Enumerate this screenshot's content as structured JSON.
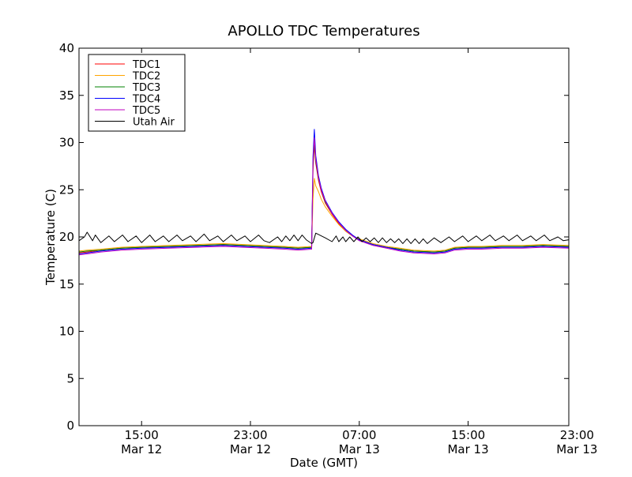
{
  "chart_data": {
    "type": "line",
    "title": "APOLLO TDC Temperatures",
    "xlabel": "Date (GMT)",
    "ylabel": "Temperature (C)",
    "x_unit": "hours since Mar 12 00:00 GMT",
    "xlim": [
      10.4,
      46.4
    ],
    "ylim": [
      0,
      40
    ],
    "y_ticks": [
      0,
      5,
      10,
      15,
      20,
      25,
      30,
      35,
      40
    ],
    "x_ticks": [
      {
        "x": 15,
        "time": "15:00",
        "date": "Mar 12"
      },
      {
        "x": 23,
        "time": "23:00",
        "date": "Mar 12"
      },
      {
        "x": 31,
        "time": "07:00",
        "date": "Mar 13"
      },
      {
        "x": 39,
        "time": "15:00",
        "date": "Mar 13"
      },
      {
        "x": 47,
        "time": "23:00",
        "date": "Mar 13"
      }
    ],
    "legend_position": "top-left",
    "series": [
      {
        "name": "TDC1",
        "color": "#ff0000",
        "x": [
          10.4,
          11.0,
          12.0,
          13.5,
          15.0,
          17.0,
          19.0,
          21.0,
          22.5,
          24.0,
          25.5,
          26.5,
          27.5,
          27.6,
          27.7,
          27.8,
          28.0,
          28.2,
          28.5,
          29.0,
          29.5,
          30.0,
          30.5,
          31.0,
          32.0,
          33.0,
          34.0,
          35.0,
          36.5,
          37.3,
          38.0,
          39.0,
          40.0,
          41.5,
          43.0,
          44.5,
          46.4
        ],
        "values": [
          18.3,
          18.4,
          18.6,
          18.8,
          18.9,
          19.0,
          19.1,
          19.2,
          19.1,
          19.0,
          18.9,
          18.8,
          18.9,
          27.0,
          29.8,
          27.8,
          26.0,
          24.8,
          23.6,
          22.4,
          21.4,
          20.6,
          20.1,
          19.7,
          19.2,
          18.9,
          18.7,
          18.5,
          18.4,
          18.5,
          18.8,
          18.9,
          18.9,
          19.0,
          19.0,
          19.1,
          19.0
        ]
      },
      {
        "name": "TDC2",
        "color": "#ffa500",
        "x": [
          10.4,
          11.0,
          12.0,
          13.5,
          15.0,
          17.0,
          19.0,
          21.0,
          22.5,
          24.0,
          25.5,
          26.5,
          27.5,
          27.6,
          27.7,
          27.8,
          28.0,
          28.2,
          28.5,
          29.0,
          29.5,
          30.0,
          30.5,
          31.0,
          32.0,
          33.0,
          34.0,
          35.0,
          36.5,
          37.3,
          38.0,
          39.0,
          40.0,
          41.5,
          43.0,
          44.5,
          46.4
        ],
        "values": [
          18.5,
          18.6,
          18.7,
          18.9,
          19.0,
          19.1,
          19.2,
          19.3,
          19.2,
          19.1,
          19.0,
          18.9,
          19.0,
          24.0,
          26.2,
          25.4,
          24.8,
          24.0,
          23.2,
          22.2,
          21.3,
          20.6,
          20.1,
          19.8,
          19.3,
          19.0,
          18.8,
          18.6,
          18.5,
          18.6,
          18.9,
          19.0,
          19.0,
          19.1,
          19.1,
          19.2,
          19.1
        ]
      },
      {
        "name": "TDC3",
        "color": "#008000",
        "x": [
          10.4,
          11.0,
          12.0,
          13.5,
          15.0,
          17.0,
          19.0,
          21.0,
          22.5,
          24.0,
          25.5,
          26.5,
          27.5,
          27.6,
          27.7,
          27.8,
          28.0,
          28.2,
          28.5,
          29.0,
          29.5,
          30.0,
          30.5,
          31.0,
          32.0,
          33.0,
          34.0,
          35.0,
          36.5,
          37.3,
          38.0,
          39.0,
          40.0,
          41.5,
          43.0,
          44.5,
          46.4
        ],
        "values": [
          18.4,
          18.5,
          18.6,
          18.8,
          18.9,
          19.0,
          19.1,
          19.2,
          19.1,
          19.0,
          18.9,
          18.8,
          18.9,
          27.5,
          30.2,
          28.0,
          26.2,
          25.0,
          23.7,
          22.5,
          21.5,
          20.7,
          20.1,
          19.7,
          19.2,
          18.9,
          18.7,
          18.5,
          18.4,
          18.5,
          18.8,
          18.9,
          18.9,
          19.0,
          19.0,
          19.1,
          19.0
        ]
      },
      {
        "name": "TDC4",
        "color": "#0000ff",
        "x": [
          10.4,
          11.0,
          12.0,
          13.5,
          15.0,
          17.0,
          19.0,
          21.0,
          22.5,
          24.0,
          25.5,
          26.5,
          27.5,
          27.6,
          27.7,
          27.8,
          28.0,
          28.2,
          28.5,
          29.0,
          29.5,
          30.0,
          30.5,
          31.0,
          32.0,
          33.0,
          34.0,
          35.0,
          36.5,
          37.3,
          38.0,
          39.0,
          40.0,
          41.5,
          43.0,
          44.5,
          46.4
        ],
        "values": [
          18.2,
          18.3,
          18.5,
          18.7,
          18.8,
          18.9,
          19.0,
          19.1,
          19.0,
          18.9,
          18.8,
          18.7,
          18.8,
          28.5,
          31.4,
          28.6,
          26.5,
          25.2,
          23.9,
          22.6,
          21.6,
          20.8,
          20.2,
          19.7,
          19.2,
          18.9,
          18.6,
          18.4,
          18.3,
          18.4,
          18.7,
          18.8,
          18.8,
          18.9,
          18.9,
          19.0,
          18.9
        ]
      },
      {
        "name": "TDC5",
        "color": "#bf00bf",
        "x": [
          10.4,
          11.0,
          12.0,
          13.5,
          15.0,
          17.0,
          19.0,
          21.0,
          22.5,
          24.0,
          25.5,
          26.5,
          27.5,
          27.6,
          27.7,
          27.8,
          28.0,
          28.2,
          28.5,
          29.0,
          29.5,
          30.0,
          30.5,
          31.0,
          32.0,
          33.0,
          34.0,
          35.0,
          36.5,
          37.3,
          38.0,
          39.0,
          40.0,
          41.5,
          43.0,
          44.5,
          46.4
        ],
        "values": [
          18.1,
          18.2,
          18.4,
          18.6,
          18.7,
          18.8,
          18.9,
          19.0,
          18.9,
          18.8,
          18.7,
          18.6,
          18.7,
          27.8,
          30.5,
          28.2,
          26.3,
          25.0,
          23.8,
          22.5,
          21.5,
          20.7,
          20.1,
          19.6,
          19.1,
          18.8,
          18.5,
          18.3,
          18.2,
          18.3,
          18.6,
          18.7,
          18.7,
          18.8,
          18.8,
          18.9,
          18.8
        ]
      },
      {
        "name": "Utah Air",
        "color": "#000000",
        "x": [
          10.4,
          10.8,
          11.0,
          11.4,
          11.6,
          12.0,
          12.6,
          13.0,
          13.6,
          14.0,
          14.6,
          15.0,
          15.6,
          16.0,
          16.6,
          17.0,
          17.6,
          18.0,
          18.6,
          19.0,
          19.6,
          20.0,
          20.6,
          21.0,
          21.6,
          22.0,
          22.6,
          23.0,
          23.6,
          24.0,
          24.4,
          25.0,
          25.3,
          25.6,
          25.9,
          26.2,
          26.5,
          26.8,
          27.1,
          27.5,
          27.6,
          27.8,
          28.5,
          29.0,
          29.3,
          29.5,
          29.8,
          30.0,
          30.3,
          30.6,
          30.9,
          31.2,
          31.5,
          31.8,
          32.1,
          32.4,
          32.7,
          33.0,
          33.3,
          33.6,
          33.9,
          34.2,
          34.5,
          34.8,
          35.1,
          35.4,
          35.7,
          36.0,
          36.5,
          37.0,
          37.6,
          38.0,
          38.6,
          39.0,
          39.6,
          40.0,
          40.6,
          41.0,
          41.6,
          42.0,
          42.6,
          43.0,
          43.6,
          44.0,
          44.6,
          45.0,
          45.6,
          46.0,
          46.4
        ],
        "values": [
          19.6,
          20.0,
          20.5,
          19.6,
          20.2,
          19.4,
          20.1,
          19.5,
          20.2,
          19.5,
          20.1,
          19.4,
          20.2,
          19.5,
          20.1,
          19.5,
          20.2,
          19.6,
          20.1,
          19.5,
          20.3,
          19.6,
          20.1,
          19.5,
          20.2,
          19.6,
          20.1,
          19.5,
          20.2,
          19.6,
          19.4,
          20.0,
          19.5,
          20.1,
          19.6,
          20.2,
          19.6,
          20.2,
          19.7,
          19.3,
          19.4,
          20.4,
          19.9,
          19.5,
          20.1,
          19.5,
          20.0,
          19.5,
          20.0,
          19.5,
          20.0,
          19.5,
          19.9,
          19.5,
          19.9,
          19.4,
          19.9,
          19.4,
          19.8,
          19.4,
          19.8,
          19.3,
          19.8,
          19.3,
          19.8,
          19.3,
          19.8,
          19.3,
          19.9,
          19.4,
          20.0,
          19.5,
          20.1,
          19.5,
          20.1,
          19.6,
          20.2,
          19.6,
          20.1,
          19.6,
          20.2,
          19.6,
          20.1,
          19.6,
          20.2,
          19.6,
          20.0,
          19.6,
          19.7
        ]
      }
    ]
  }
}
